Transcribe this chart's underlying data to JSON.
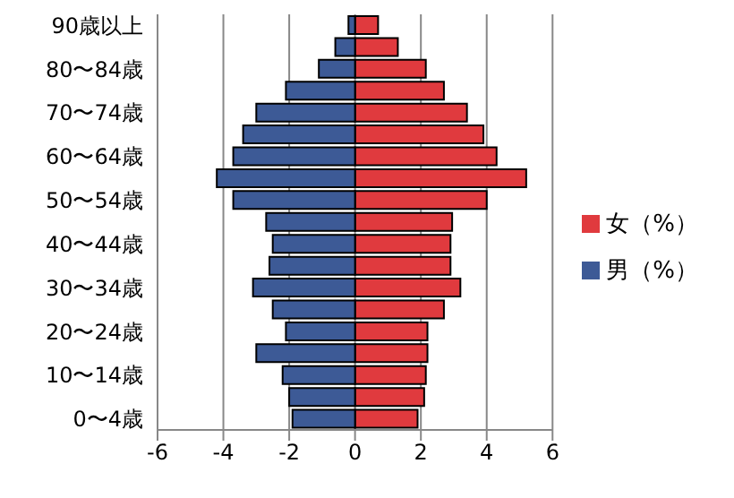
{
  "chart_data": {
    "type": "bar",
    "orientation": "horizontal",
    "stacked": true,
    "categories": [
      "90歳以上",
      null,
      "80〜84歳",
      null,
      "70〜74歳",
      null,
      "60〜64歳",
      null,
      "50〜54歳",
      null,
      "40〜44歳",
      null,
      "30〜34歳",
      null,
      "20〜24歳",
      null,
      "10〜14歳",
      null,
      "0〜4歳"
    ],
    "series": [
      {
        "name": "女（%）",
        "color": "#e03a3e",
        "values": [
          0.7,
          1.3,
          2.15,
          2.7,
          3.4,
          3.9,
          4.3,
          5.2,
          4.0,
          2.95,
          2.9,
          2.9,
          3.2,
          2.7,
          2.2,
          2.2,
          2.15,
          2.1,
          1.9
        ]
      },
      {
        "name": "男（%）",
        "color": "#3d5a96",
        "values": [
          -0.2,
          -0.6,
          -1.1,
          -2.1,
          -3.0,
          -3.4,
          -3.7,
          -4.2,
          -3.7,
          -2.7,
          -2.5,
          -2.6,
          -3.1,
          -2.5,
          -2.1,
          -3.0,
          -2.2,
          -2.0,
          -1.9
        ]
      }
    ],
    "xlim": [
      -6,
      6
    ],
    "xticks": [
      -6,
      -4,
      -2,
      0,
      2,
      4,
      6
    ],
    "grid": "x",
    "legend": "right"
  }
}
